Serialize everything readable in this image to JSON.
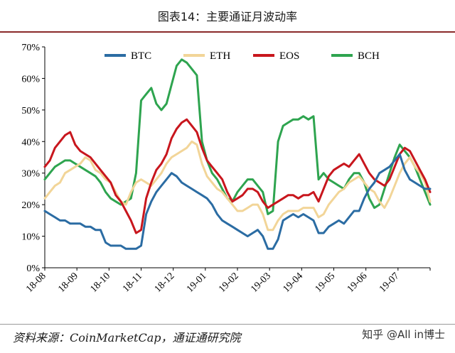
{
  "header": {
    "title": "图表14：主要通证月波动率"
  },
  "footer": {
    "source": "资料来源：CoinMarketCap，通证通研究院",
    "watermark": "知乎 @All in博士"
  },
  "colors": {
    "BTC": "#2b6ca3",
    "ETH": "#f2d598",
    "EOS": "#c8161d",
    "BCH": "#2ea44f",
    "title_rule": "#8a2a2a"
  },
  "chart_data": {
    "type": "line",
    "title": "图表14：主要通证月波动率",
    "xlabel": "",
    "ylabel": "",
    "ylim": [
      0,
      70
    ],
    "yticks": [
      "0%",
      "10%",
      "20%",
      "30%",
      "40%",
      "50%",
      "60%",
      "70%"
    ],
    "x_tick_labels": [
      "18-08",
      "18-09",
      "18-10",
      "18-11",
      "18-12",
      "19-01",
      "19-02",
      "19-03",
      "19-04",
      "19-05",
      "19-06",
      "19-07"
    ],
    "legend_placement": "top",
    "grid": false,
    "series": [
      {
        "name": "BTC",
        "values": [
          18,
          17,
          16,
          15,
          15,
          14,
          14,
          14,
          13,
          13,
          12,
          12,
          8,
          7,
          7,
          7,
          6,
          6,
          6,
          7,
          17,
          21,
          24,
          26,
          28,
          30,
          29,
          27,
          26,
          25,
          24,
          23,
          22,
          20,
          17,
          15,
          14,
          13,
          12,
          11,
          10,
          11,
          12,
          10,
          6,
          6,
          9,
          15,
          16,
          17,
          16,
          17,
          16,
          15,
          11,
          11,
          13,
          14,
          15,
          14,
          16,
          18,
          18,
          22,
          25,
          27,
          30,
          31,
          32,
          34,
          36,
          31,
          28,
          27,
          26,
          25,
          25
        ]
      },
      {
        "name": "ETH",
        "values": [
          22,
          24,
          26,
          27,
          30,
          31,
          32,
          33,
          35,
          34,
          31,
          30,
          28,
          27,
          24,
          21,
          20,
          24,
          27,
          28,
          27,
          26,
          28,
          30,
          33,
          35,
          36,
          37,
          38,
          40,
          39,
          33,
          29,
          27,
          25,
          24,
          22,
          20,
          18,
          18,
          19,
          20,
          20,
          17,
          12,
          12,
          15,
          17,
          18,
          18,
          18,
          19,
          19,
          19,
          16,
          17,
          20,
          22,
          24,
          25,
          27,
          28,
          29,
          27,
          25,
          24,
          21,
          19,
          22,
          26,
          30,
          33,
          35,
          32,
          30,
          27,
          21
        ]
      },
      {
        "name": "EOS",
        "values": [
          32,
          34,
          38,
          40,
          42,
          43,
          39,
          37,
          36,
          35,
          33,
          31,
          29,
          27,
          23,
          21,
          18,
          15,
          11,
          12,
          22,
          27,
          31,
          33,
          36,
          41,
          44,
          46,
          47,
          45,
          43,
          38,
          34,
          32,
          30,
          28,
          24,
          21,
          22,
          23,
          25,
          25,
          24,
          21,
          19,
          20,
          21,
          22,
          23,
          23,
          22,
          23,
          23,
          24,
          21,
          25,
          29,
          31,
          32,
          33,
          32,
          34,
          36,
          33,
          30,
          28,
          27,
          26,
          28,
          32,
          36,
          38,
          37,
          34,
          31,
          28,
          24
        ]
      },
      {
        "name": "BCH",
        "values": [
          28,
          30,
          32,
          33,
          34,
          34,
          33,
          32,
          31,
          30,
          29,
          27,
          24,
          22,
          21,
          20,
          21,
          22,
          30,
          53,
          55,
          57,
          52,
          50,
          52,
          58,
          64,
          66,
          65,
          63,
          61,
          40,
          34,
          30,
          28,
          25,
          22,
          21,
          24,
          26,
          28,
          28,
          26,
          24,
          17,
          18,
          40,
          45,
          46,
          47,
          47,
          48,
          47,
          48,
          28,
          30,
          28,
          27,
          26,
          25,
          28,
          30,
          30,
          27,
          22,
          19,
          20,
          25,
          30,
          35,
          39,
          37,
          35,
          32,
          28,
          24,
          20
        ]
      }
    ]
  }
}
